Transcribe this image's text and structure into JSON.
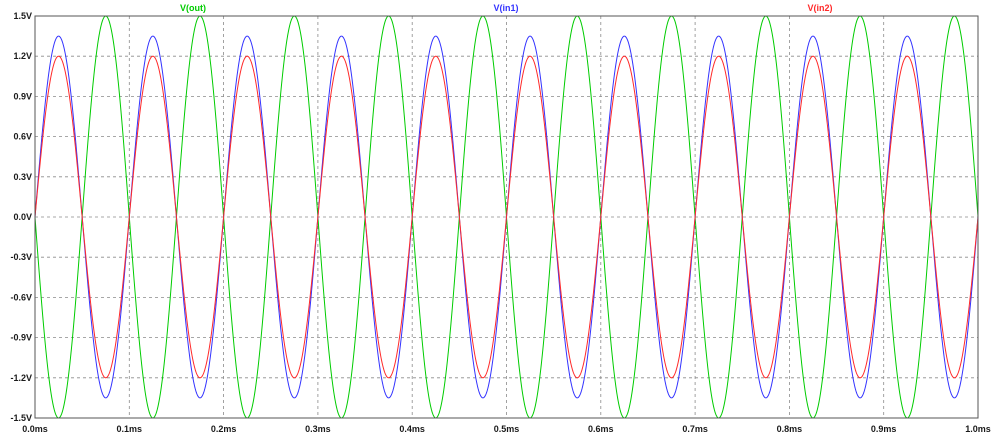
{
  "chart_data": {
    "type": "line",
    "title": "",
    "xlabel": "",
    "ylabel": "",
    "xlim": [
      0.0,
      1.0
    ],
    "ylim": [
      -1.5,
      1.5
    ],
    "x_unit": "ms",
    "y_unit": "V",
    "frequency_khz": 10,
    "grid": true,
    "legend_placement": "top",
    "x_ticks": [
      "0.0ms",
      "0.1ms",
      "0.2ms",
      "0.3ms",
      "0.4ms",
      "0.5ms",
      "0.6ms",
      "0.7ms",
      "0.8ms",
      "0.9ms",
      "1.0ms"
    ],
    "x_tick_values": [
      0.0,
      0.1,
      0.2,
      0.3,
      0.4,
      0.5,
      0.6,
      0.7,
      0.8,
      0.9,
      1.0
    ],
    "y_ticks": [
      "1.5V",
      "1.2V",
      "0.9V",
      "0.6V",
      "0.3V",
      "0.0V",
      "-0.3V",
      "-0.6V",
      "-0.9V",
      "-1.2V",
      "-1.5V"
    ],
    "y_tick_values": [
      1.5,
      1.2,
      0.9,
      0.6,
      0.3,
      0.0,
      -0.3,
      -0.6,
      -0.9,
      -1.2,
      -1.5
    ],
    "series": [
      {
        "name": "V(out)",
        "color": "#00cc00",
        "amplitude": 1.5,
        "phase_deg": 180
      },
      {
        "name": "V(in1)",
        "color": "#3333ff",
        "amplitude": 1.35,
        "phase_deg": 0
      },
      {
        "name": "V(in2)",
        "color": "#ff2a2a",
        "amplitude": 1.2,
        "phase_deg": 0
      }
    ],
    "legend_positions": [
      "left",
      "center",
      "right"
    ],
    "colors": {
      "grid": "#8a8a8a",
      "frame": "#555555",
      "background": "#ffffff",
      "text": "#1a1a1a"
    }
  }
}
